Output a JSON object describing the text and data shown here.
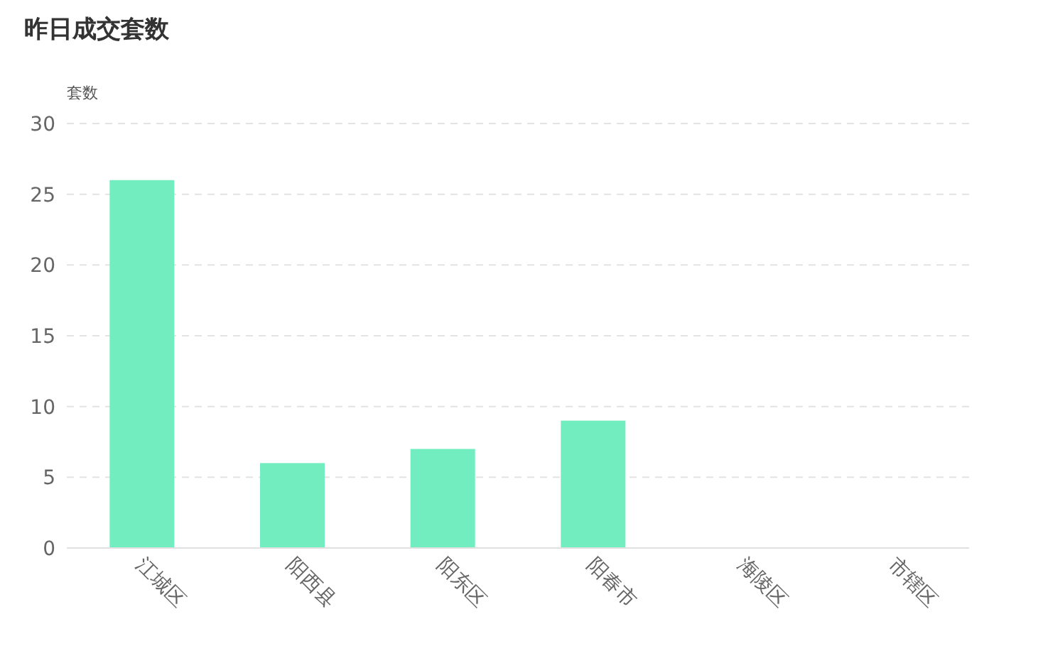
{
  "chart_data": {
    "type": "bar",
    "title": "昨日成交套数",
    "ylabel": "套数",
    "categories": [
      "江城区",
      "阳西县",
      "阳东区",
      "阳春市",
      "海陵区",
      "市辖区"
    ],
    "values": [
      26,
      6,
      7,
      9,
      0,
      0
    ],
    "color": "#72edbf",
    "ylim": [
      0,
      30
    ],
    "yticks": [
      0,
      5,
      10,
      15,
      20,
      25,
      30
    ],
    "grid": "y"
  }
}
